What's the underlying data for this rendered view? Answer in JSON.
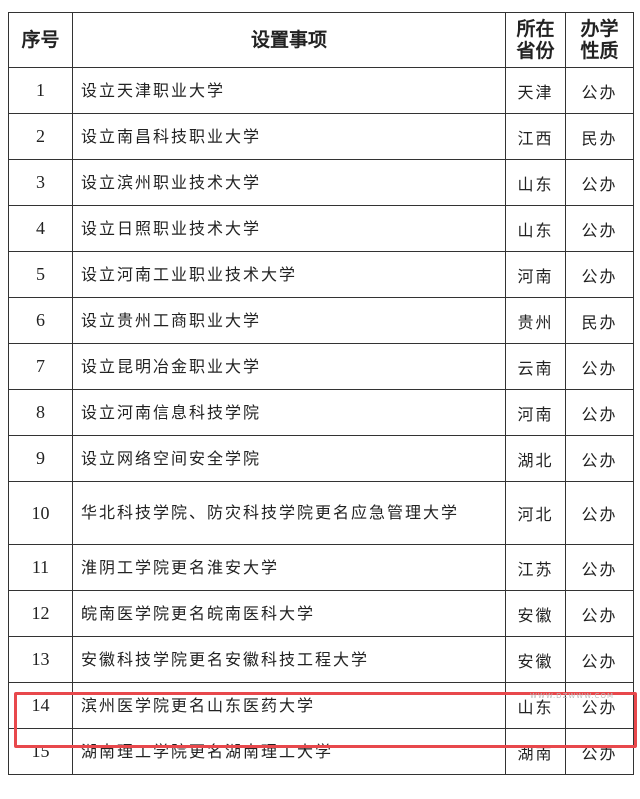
{
  "headers": {
    "no": "序号",
    "item": "设置事项",
    "province": "所在省份",
    "type": "办学性质"
  },
  "rows": [
    {
      "no": "1",
      "item": "设立天津职业大学",
      "province": "天津",
      "type": "公办"
    },
    {
      "no": "2",
      "item": "设立南昌科技职业大学",
      "province": "江西",
      "type": "民办"
    },
    {
      "no": "3",
      "item": "设立滨州职业技术大学",
      "province": "山东",
      "type": "公办"
    },
    {
      "no": "4",
      "item": "设立日照职业技术大学",
      "province": "山东",
      "type": "公办"
    },
    {
      "no": "5",
      "item": "设立河南工业职业技术大学",
      "province": "河南",
      "type": "公办"
    },
    {
      "no": "6",
      "item": "设立贵州工商职业大学",
      "province": "贵州",
      "type": "民办"
    },
    {
      "no": "7",
      "item": "设立昆明冶金职业大学",
      "province": "云南",
      "type": "公办"
    },
    {
      "no": "8",
      "item": "设立河南信息科技学院",
      "province": "河南",
      "type": "公办"
    },
    {
      "no": "9",
      "item": "设立网络空间安全学院",
      "province": "湖北",
      "type": "公办"
    },
    {
      "no": "10",
      "item": "华北科技学院、防灾科技学院更名应急管理大学",
      "province": "河北",
      "type": "公办"
    },
    {
      "no": "11",
      "item": "淮阴工学院更名淮安大学",
      "province": "江苏",
      "type": "公办"
    },
    {
      "no": "12",
      "item": "皖南医学院更名皖南医科大学",
      "province": "安徽",
      "type": "公办"
    },
    {
      "no": "13",
      "item": "安徽科技学院更名安徽科技工程大学",
      "province": "安徽",
      "type": "公办"
    },
    {
      "no": "14",
      "item": "滨州医学院更名山东医药大学",
      "province": "山东",
      "type": "公办"
    },
    {
      "no": "15",
      "item": "湖南理工学院更名湖南理工大学",
      "province": "湖南",
      "type": "公办"
    }
  ],
  "highlight_color": "#e8484c",
  "watermark": "WWW.DZWWW.COM"
}
